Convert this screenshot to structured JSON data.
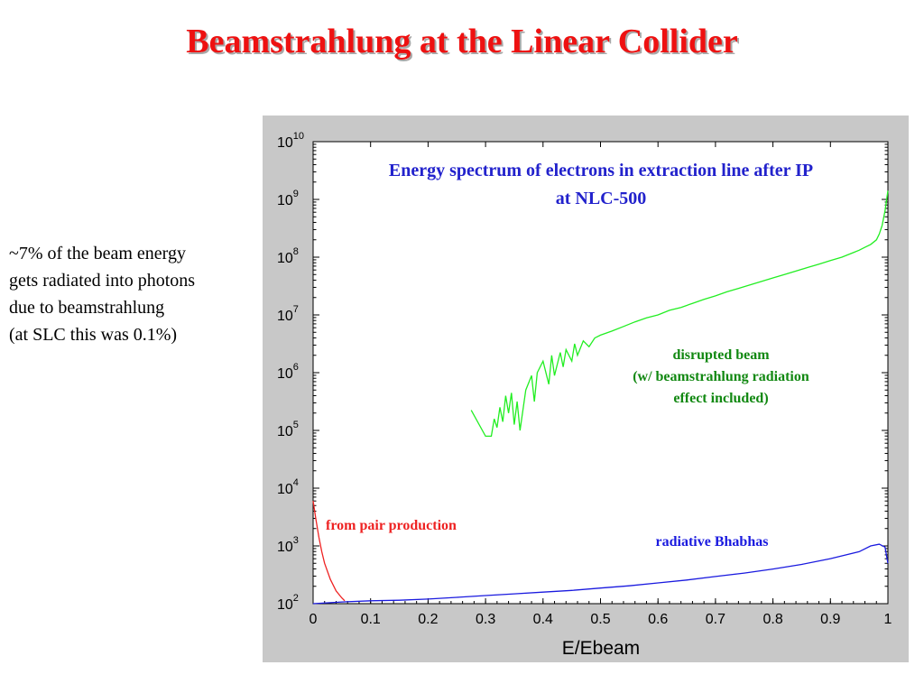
{
  "slide": {
    "title": "Beamstrahlung at the Linear Collider",
    "side_text": [
      "~7% of the beam energy",
      "gets radiated into photons",
      "due to beamstrahlung",
      "(at SLC this was 0.1%)"
    ]
  },
  "colors": {
    "title": "#ee1111",
    "plot_title": "#2222cc",
    "disrupted_beam": "#22ee22",
    "bhabhas": "#1a1adf",
    "pair_production": "#ee2222",
    "panel_bg": "#c8c8c8",
    "disrupted_label": "#118811"
  },
  "chart_data": {
    "type": "line",
    "title_lines": [
      "Energy spectrum of electrons in extraction line after IP",
      "at NLC-500"
    ],
    "xlabel": "E/Ebeam",
    "ylabel": "",
    "xlim": [
      0,
      1
    ],
    "ylim_log10": [
      2,
      10
    ],
    "yscale": "log",
    "grid": false,
    "x_ticks": [
      "0",
      "0.1",
      "0.2",
      "0.3",
      "0.4",
      "0.5",
      "0.6",
      "0.7",
      "0.8",
      "0.9",
      "1"
    ],
    "y_ticks": [
      {
        "base": "10",
        "exp": "2"
      },
      {
        "base": "10",
        "exp": "3"
      },
      {
        "base": "10",
        "exp": "4"
      },
      {
        "base": "10",
        "exp": "5"
      },
      {
        "base": "10",
        "exp": "6"
      },
      {
        "base": "10",
        "exp": "7"
      },
      {
        "base": "10",
        "exp": "8"
      },
      {
        "base": "10",
        "exp": "9"
      },
      {
        "base": "10",
        "exp": "10"
      }
    ],
    "annotations": {
      "disrupted_beam": [
        "disrupted beam",
        "(w/ beamstrahlung radiation",
        "effect included)"
      ],
      "pair_production": "from pair production",
      "bhabhas": "radiative Bhabhas"
    },
    "series": [
      {
        "key": "disrupted_beam",
        "x": [
          0.275,
          0.3,
          0.31,
          0.315,
          0.32,
          0.325,
          0.33,
          0.335,
          0.34,
          0.345,
          0.35,
          0.355,
          0.36,
          0.37,
          0.38,
          0.385,
          0.39,
          0.4,
          0.41,
          0.415,
          0.42,
          0.43,
          0.435,
          0.44,
          0.45,
          0.455,
          0.46,
          0.47,
          0.48,
          0.49,
          0.5,
          0.52,
          0.54,
          0.56,
          0.58,
          0.6,
          0.62,
          0.64,
          0.66,
          0.68,
          0.7,
          0.72,
          0.74,
          0.76,
          0.78,
          0.8,
          0.82,
          0.84,
          0.86,
          0.88,
          0.9,
          0.92,
          0.94,
          0.95,
          0.96,
          0.97,
          0.98,
          0.985,
          0.99,
          0.995,
          1.0
        ],
        "y_log10": [
          5.35,
          4.9,
          4.9,
          5.2,
          5.05,
          5.4,
          5.15,
          5.6,
          5.3,
          5.65,
          5.1,
          5.5,
          5.0,
          5.7,
          5.95,
          5.5,
          6.0,
          6.2,
          5.8,
          6.3,
          5.95,
          6.35,
          6.1,
          6.4,
          6.2,
          6.5,
          6.3,
          6.55,
          6.45,
          6.6,
          6.65,
          6.72,
          6.8,
          6.88,
          6.95,
          7.0,
          7.08,
          7.13,
          7.2,
          7.27,
          7.33,
          7.4,
          7.46,
          7.52,
          7.58,
          7.64,
          7.7,
          7.76,
          7.82,
          7.88,
          7.94,
          8.0,
          8.08,
          8.12,
          8.17,
          8.22,
          8.3,
          8.4,
          8.55,
          8.8,
          9.15
        ]
      },
      {
        "key": "bhabhas",
        "x": [
          0.0,
          0.05,
          0.1,
          0.15,
          0.2,
          0.25,
          0.3,
          0.35,
          0.4,
          0.45,
          0.5,
          0.55,
          0.6,
          0.65,
          0.7,
          0.75,
          0.8,
          0.85,
          0.9,
          0.95,
          0.97,
          0.985,
          0.995,
          1.0
        ],
        "y_log10": [
          2.0,
          2.03,
          2.05,
          2.06,
          2.08,
          2.11,
          2.14,
          2.17,
          2.2,
          2.23,
          2.27,
          2.31,
          2.36,
          2.41,
          2.47,
          2.53,
          2.6,
          2.68,
          2.78,
          2.9,
          3.0,
          3.03,
          2.98,
          2.7
        ]
      },
      {
        "key": "pair_production",
        "x": [
          0.0,
          0.005,
          0.01,
          0.015,
          0.02,
          0.03,
          0.04,
          0.05,
          0.055
        ],
        "y_log10": [
          3.78,
          3.45,
          3.15,
          2.9,
          2.7,
          2.42,
          2.22,
          2.1,
          2.05
        ]
      }
    ]
  }
}
